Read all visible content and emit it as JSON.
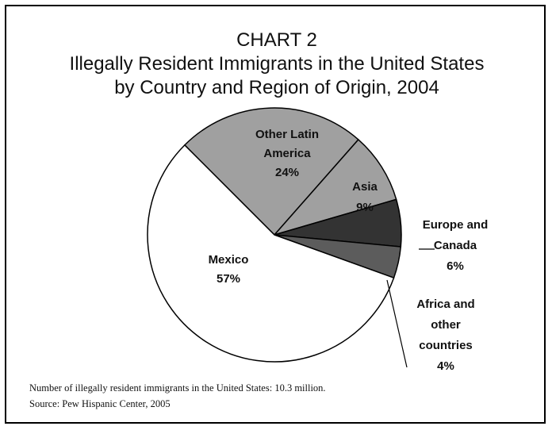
{
  "chart_data": {
    "type": "pie",
    "title": "CHART 2",
    "subtitle": [
      "Illegally Resident Immigrants in the United States",
      "by Country and Region of Origin, 2004"
    ],
    "slices": [
      {
        "label": [
          "Other Latin",
          "America"
        ],
        "value": 24,
        "value_label": "24%",
        "color": "#a0a0a0"
      },
      {
        "label": [
          "Asia"
        ],
        "value": 9,
        "value_label": "9%",
        "color": "#a0a0a0"
      },
      {
        "label": [
          "Europe and",
          "Canada"
        ],
        "value": 6,
        "value_label": "6%",
        "color": "#333333"
      },
      {
        "label": [
          "Africa and",
          "other",
          "countries"
        ],
        "value": 4,
        "value_label": "4%",
        "color": "#5c5c5c"
      },
      {
        "label": [
          "Mexico"
        ],
        "value": 57,
        "value_label": "57%",
        "color": "#ffffff"
      }
    ]
  },
  "footnotes": {
    "total": "Number of illegally resident immigrants in the United States: 10.3 million.",
    "source": "Source: Pew Hispanic Center, 2005"
  }
}
